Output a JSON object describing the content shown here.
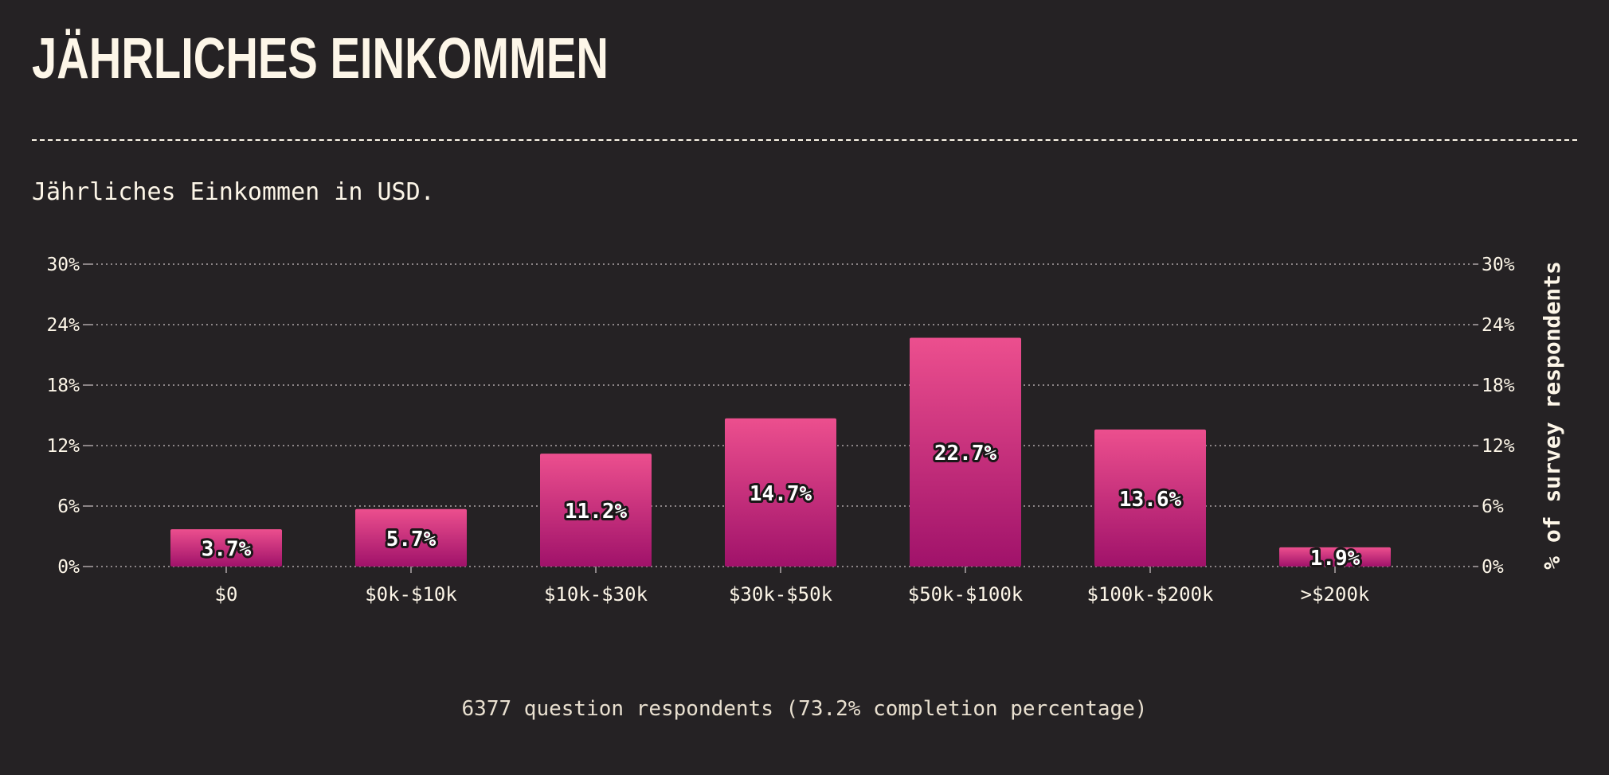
{
  "header": {
    "title": "JÄHRLICHES EINKOMMEN",
    "subtitle": "Jährliches Einkommen in USD."
  },
  "footer": {
    "note": "6377 question respondents (73.2% completion percentage)"
  },
  "colors": {
    "background": "#252224",
    "text": "#fdf6e8",
    "bar_top": "#ec4f8e",
    "bar_bottom": "#a0126a",
    "grid": "#8c8587"
  },
  "chart_data": {
    "type": "bar",
    "title": "",
    "xlabel": "",
    "ylabel": "% of survey respondents",
    "categories": [
      "$0",
      "$0k-$10k",
      "$10k-$30k",
      "$30k-$50k",
      "$50k-$100k",
      "$100k-$200k",
      ">$200k"
    ],
    "values": [
      3.7,
      5.7,
      11.2,
      14.7,
      22.7,
      13.6,
      1.9
    ],
    "value_labels": [
      "3.7%",
      "5.7%",
      "11.2%",
      "14.7%",
      "22.7%",
      "13.6%",
      "1.9%"
    ],
    "ylim": [
      0,
      30
    ],
    "yticks": [
      0,
      6,
      12,
      18,
      24,
      30
    ],
    "ytick_labels": [
      "0%",
      "6%",
      "12%",
      "18%",
      "24%",
      "30%"
    ],
    "y_axis_both_sides": true,
    "grid": "horizontal dotted",
    "legend": "none"
  }
}
